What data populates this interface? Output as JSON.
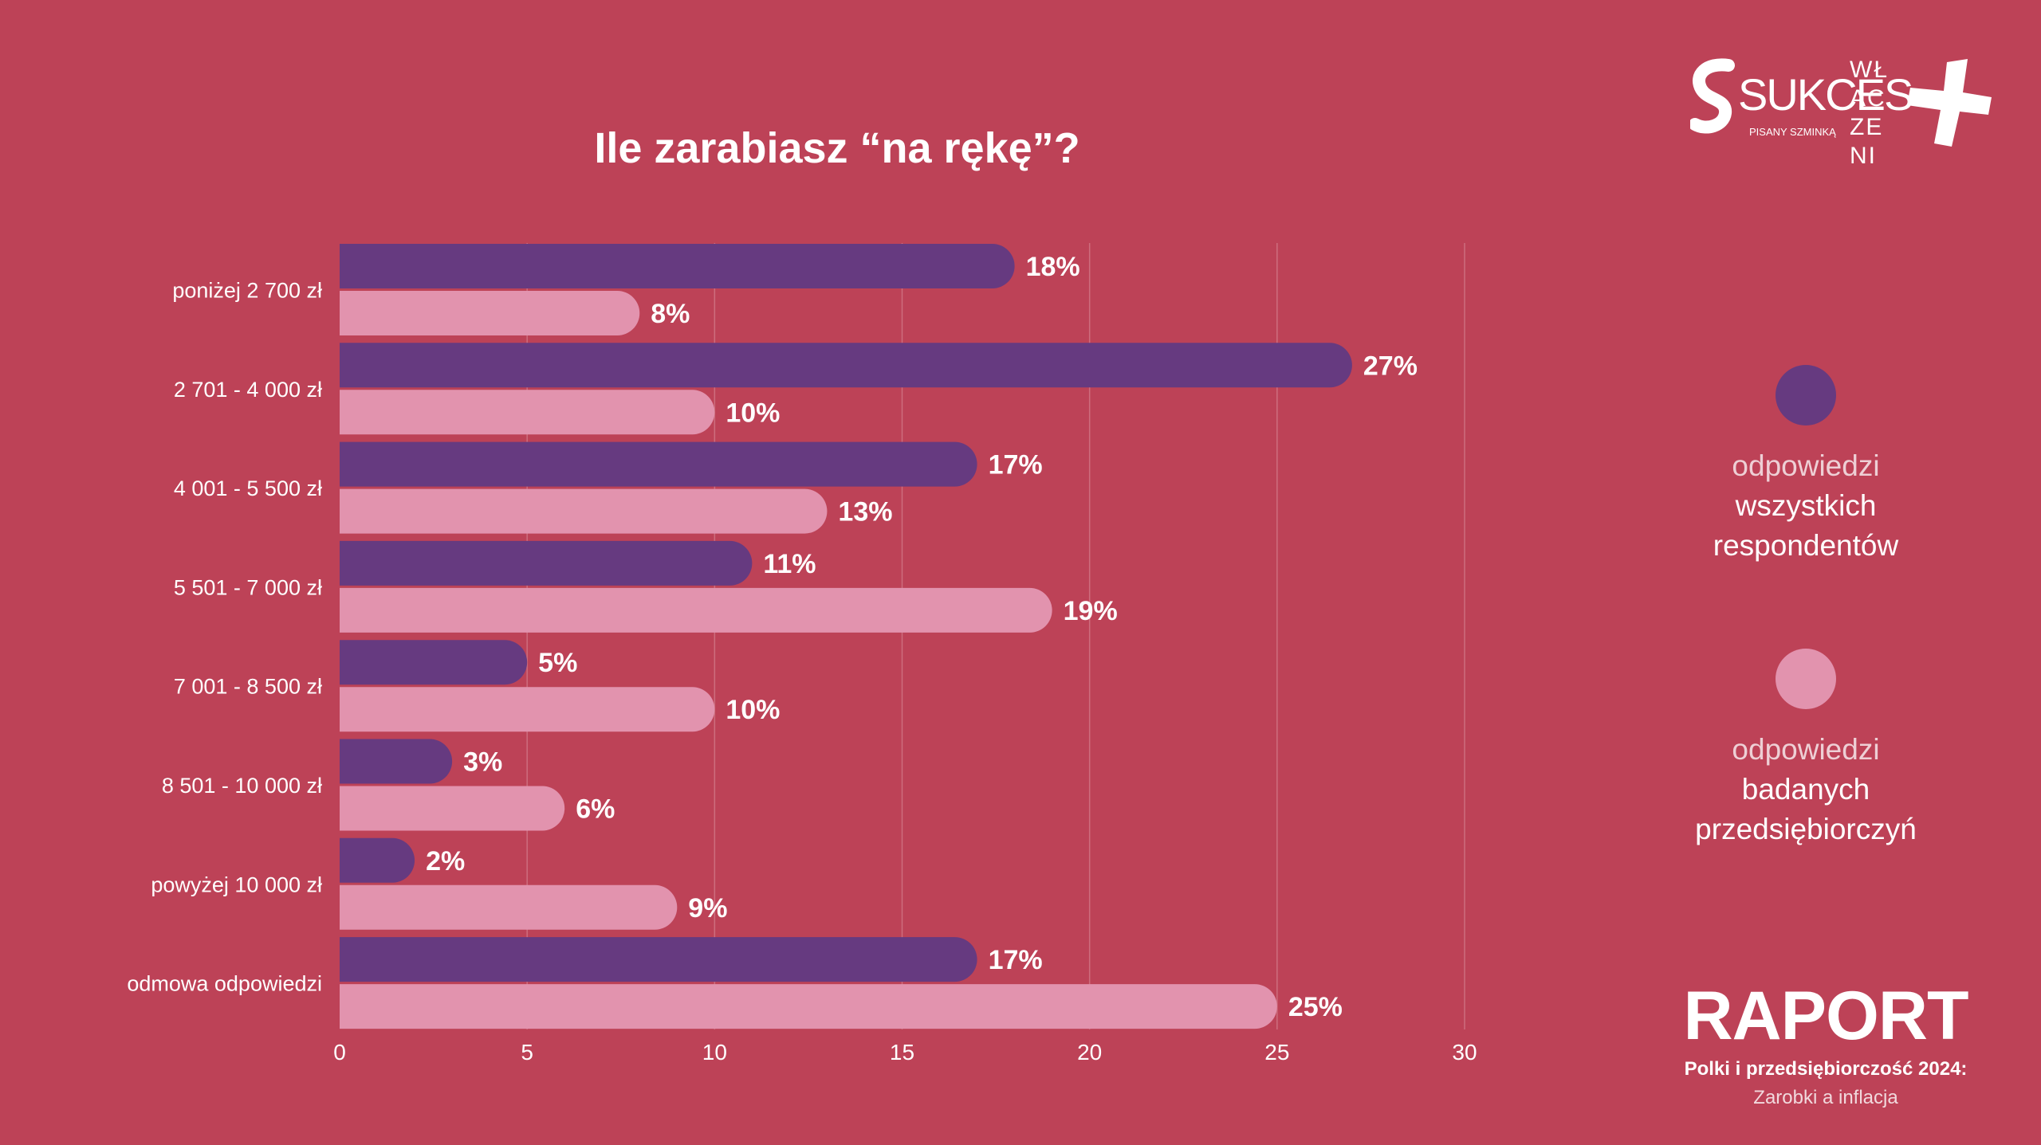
{
  "colors": {
    "background": "#bd4257",
    "series_all": "#663a80",
    "series_entrepreneurs": "#e293ae",
    "text": "#ffffff",
    "grid": "#cd6d7e"
  },
  "logos": {
    "sukces_name": "SUKCES",
    "sukces_sub": "PISANY SZMINKĄ",
    "wlaczeni": "WŁACZENI"
  },
  "legend": {
    "all": {
      "line1": "odpowiedzi",
      "line2": "wszystkich",
      "line3": "respondentów"
    },
    "entrepreneurs": {
      "line1": "odpowiedzi",
      "line2": "badanych",
      "line3": "przedsiębiorczyń"
    }
  },
  "report": {
    "title": "RAPORT",
    "line1": "Polki i przedsiębiorczość 2024:",
    "line2": "Zarobki a inflacja"
  },
  "chart_data": {
    "type": "bar",
    "orientation": "horizontal",
    "title": "Ile zarabiasz “na rękę”?",
    "categories": [
      "poniżej 2 700 zł",
      "2 701 - 4 000 zł",
      "4 001 - 5 500 zł",
      "5 501 - 7 000 zł",
      "7 001 - 8 500 zł",
      "8 501 - 10 000 zł",
      "powyżej 10 000 zł",
      "odmowa odpowiedzi"
    ],
    "series": [
      {
        "values": [
          18,
          27,
          17,
          11,
          5,
          3,
          2,
          17
        ],
        "labels": [
          "18%",
          "27%",
          "17%",
          "11%",
          "5%",
          "3%",
          "2%",
          "17%"
        ]
      },
      {
        "values": [
          8,
          10,
          13,
          19,
          10,
          6,
          9,
          25
        ],
        "labels": [
          "8%",
          "10%",
          "13%",
          "19%",
          "10%",
          "6%",
          "9%",
          "25%"
        ]
      }
    ],
    "xlim": [
      0,
      30
    ],
    "xticks": [
      0,
      5,
      10,
      15,
      20,
      25,
      30
    ],
    "grid": true,
    "legend_position": "right"
  }
}
